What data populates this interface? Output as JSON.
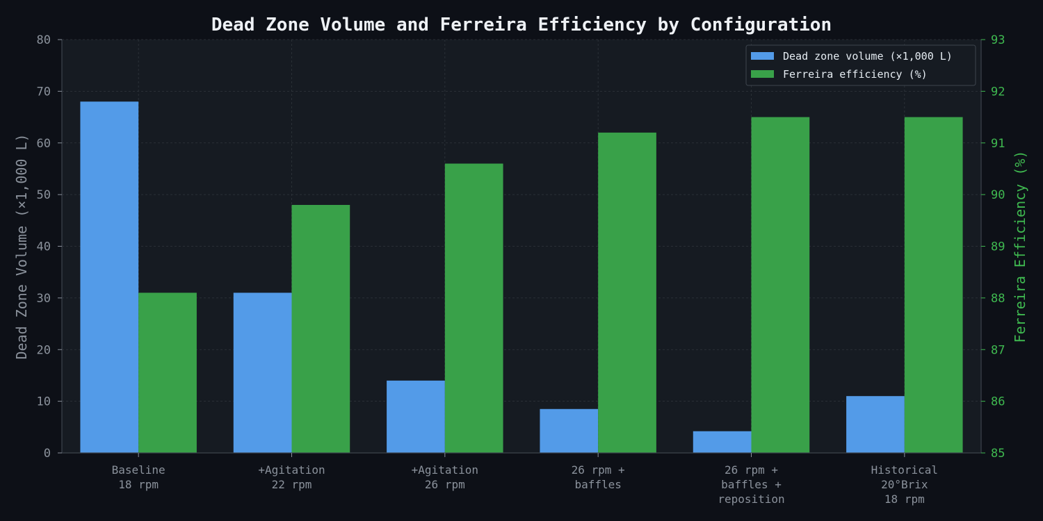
{
  "chart_data": {
    "type": "bar",
    "title": "Dead Zone Volume and Ferreira Efficiency by Configuration",
    "categories": [
      [
        "Baseline",
        "18 rpm"
      ],
      [
        "+Agitation",
        "22 rpm"
      ],
      [
        "+Agitation",
        "26 rpm"
      ],
      [
        "26 rpm +",
        "baffles"
      ],
      [
        "26 rpm +",
        "baffles +",
        "reposition"
      ],
      [
        "Historical",
        "20°Brix",
        "18 rpm"
      ]
    ],
    "series": [
      {
        "name": "Dead zone volume (×1,000 L)",
        "axis": "left",
        "color": "#539be8",
        "values": [
          68,
          31,
          14,
          8.5,
          4.2,
          11
        ]
      },
      {
        "name": "Ferreira efficiency (%)",
        "axis": "right",
        "color": "#39a149",
        "values": [
          88.1,
          89.8,
          90.6,
          91.2,
          91.5,
          91.5
        ]
      }
    ],
    "ylabel_left": "Dead Zone Volume (×1,000 L)",
    "ylabel_right": "Ferreira Efficiency (%)",
    "ylim_left": [
      0,
      80
    ],
    "yticks_left": [
      0,
      10,
      20,
      30,
      40,
      50,
      60,
      70,
      80
    ],
    "ylim_right": [
      85,
      93
    ],
    "yticks_right": [
      85,
      86,
      87,
      88,
      89,
      90,
      91,
      92,
      93
    ],
    "grid": true,
    "legend_position": "top-right",
    "colors": {
      "background": "#0d1017",
      "plot_background": "#161b22",
      "grid": "#30363d",
      "left_axis": "#8b929c",
      "right_axis": "#3fb950"
    }
  }
}
